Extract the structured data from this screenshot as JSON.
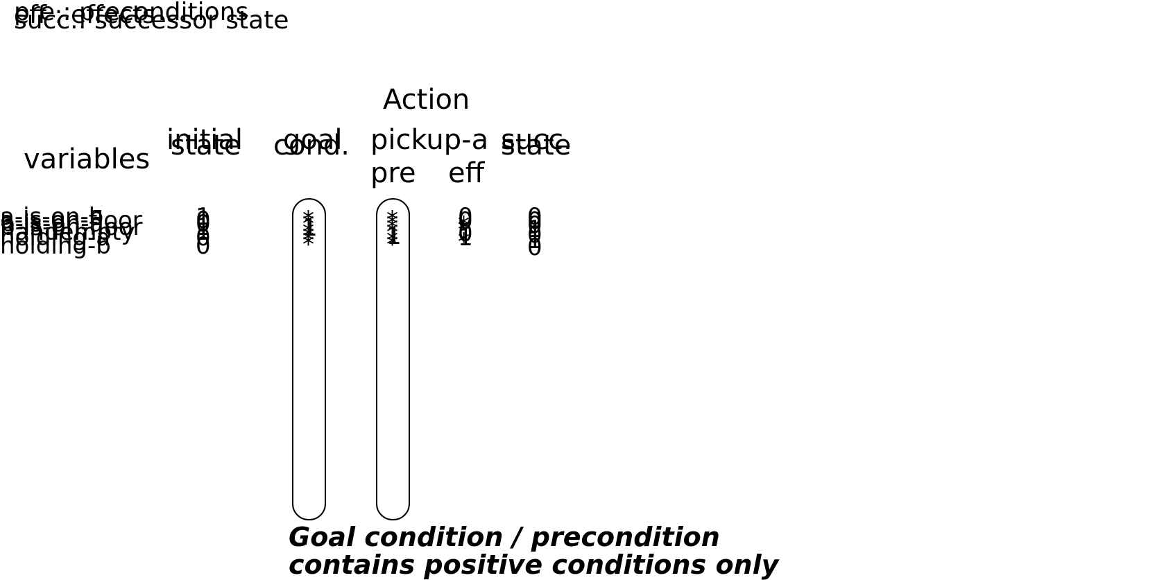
{
  "legend": [
    "pre : preconditions",
    "eff : effects",
    "succ.: successor state"
  ],
  "headers": {
    "variables": "variables",
    "initial_state": [
      "initial",
      "state"
    ],
    "goal_cond": [
      "goal",
      "cond."
    ],
    "action": "Action",
    "action_name": "pickup-a",
    "pre": "pre",
    "eff": "eff",
    "succ_state": [
      "succ.",
      "state"
    ]
  },
  "variables": [
    "a-is-on-b",
    "a-is-on-floor",
    "b-is-on-a",
    "b-is-on-floor",
    "handempty",
    "holding-a",
    "holding-b"
  ],
  "initial_state": [
    "1",
    "0",
    "0",
    "1",
    "1",
    "0",
    "0"
  ],
  "goal_cond": [
    "*",
    "*",
    "1",
    "*",
    "*",
    "*",
    "*"
  ],
  "pre": [
    "*",
    "*",
    "*",
    "*",
    "1",
    "*",
    "*"
  ],
  "eff": [
    "0",
    "0",
    "*",
    "*",
    "0",
    "1",
    "*"
  ],
  "succ_state": [
    "0",
    "0",
    "0",
    "1",
    "0",
    "1",
    "0"
  ],
  "caption": [
    "Goal condition / precondition",
    "contains positive conditions only"
  ]
}
